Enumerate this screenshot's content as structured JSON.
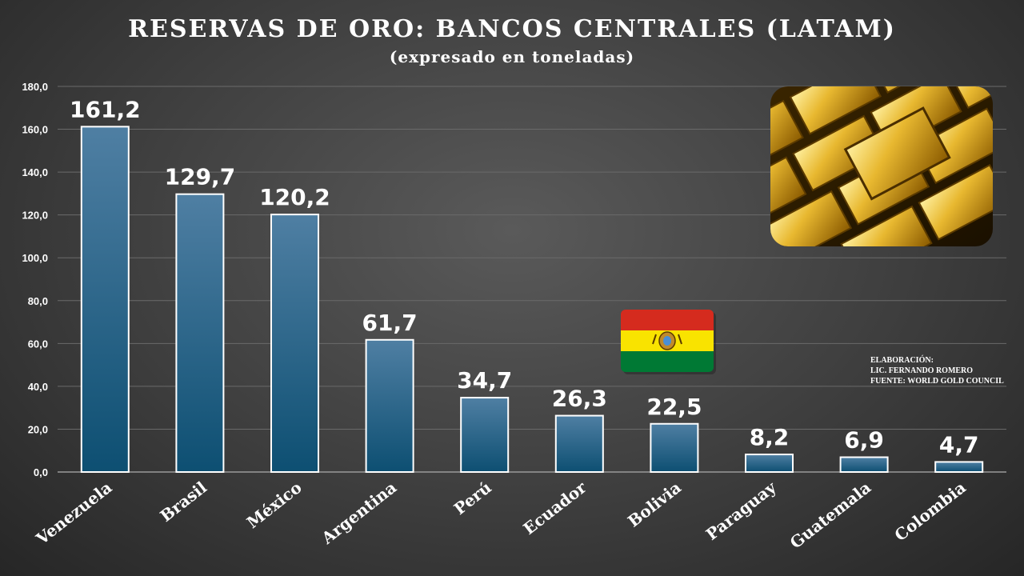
{
  "chart_data": {
    "type": "bar",
    "title": "RESERVAS DE ORO: BANCOS CENTRALES (LATAM)",
    "subtitle": "(expresado en toneladas)",
    "categories": [
      "Venezuela",
      "Brasil",
      "México",
      "Argentina",
      "Perú",
      "Ecuador",
      "Bolivia",
      "Paraguay",
      "Guatemala",
      "Colombia"
    ],
    "values": [
      161.2,
      129.7,
      120.2,
      61.7,
      34.7,
      26.3,
      22.5,
      8.2,
      6.9,
      4.7
    ],
    "value_labels": [
      "161,2",
      "129,7",
      "120,2",
      "61,7",
      "34,7",
      "26,3",
      "22,5",
      "8,2",
      "6,9",
      "4,7"
    ],
    "yticks": [
      0,
      20,
      40,
      60,
      80,
      100,
      120,
      140,
      160,
      180
    ],
    "ytick_labels": [
      "0,0",
      "20,0",
      "40,0",
      "60,0",
      "80,0",
      "100,0",
      "120,0",
      "140,0",
      "160,0",
      "180,0"
    ],
    "ylim": [
      0,
      180
    ],
    "xlabel": "",
    "ylabel": "",
    "grid": true,
    "highlight_category": "Bolivia"
  },
  "credits": {
    "line1": "ELABORACIÓN:",
    "line2": "LIC. FERNANDO ROMERO",
    "line3": "FUENTE: WORLD GOLD COUNCIL"
  },
  "colors": {
    "bar_top": "#4f7fa3",
    "bar_bottom": "#0d4f72",
    "bar_border": "#ffffff",
    "gridline": "#6a6a6a",
    "text": "#ffffff",
    "flag_red": "#d52b1e",
    "flag_yellow": "#f9e300",
    "flag_green": "#007934",
    "gold": "#d4a017"
  },
  "icons": {
    "flag": "bolivia-flag-icon",
    "photo": "gold-bars-image"
  }
}
